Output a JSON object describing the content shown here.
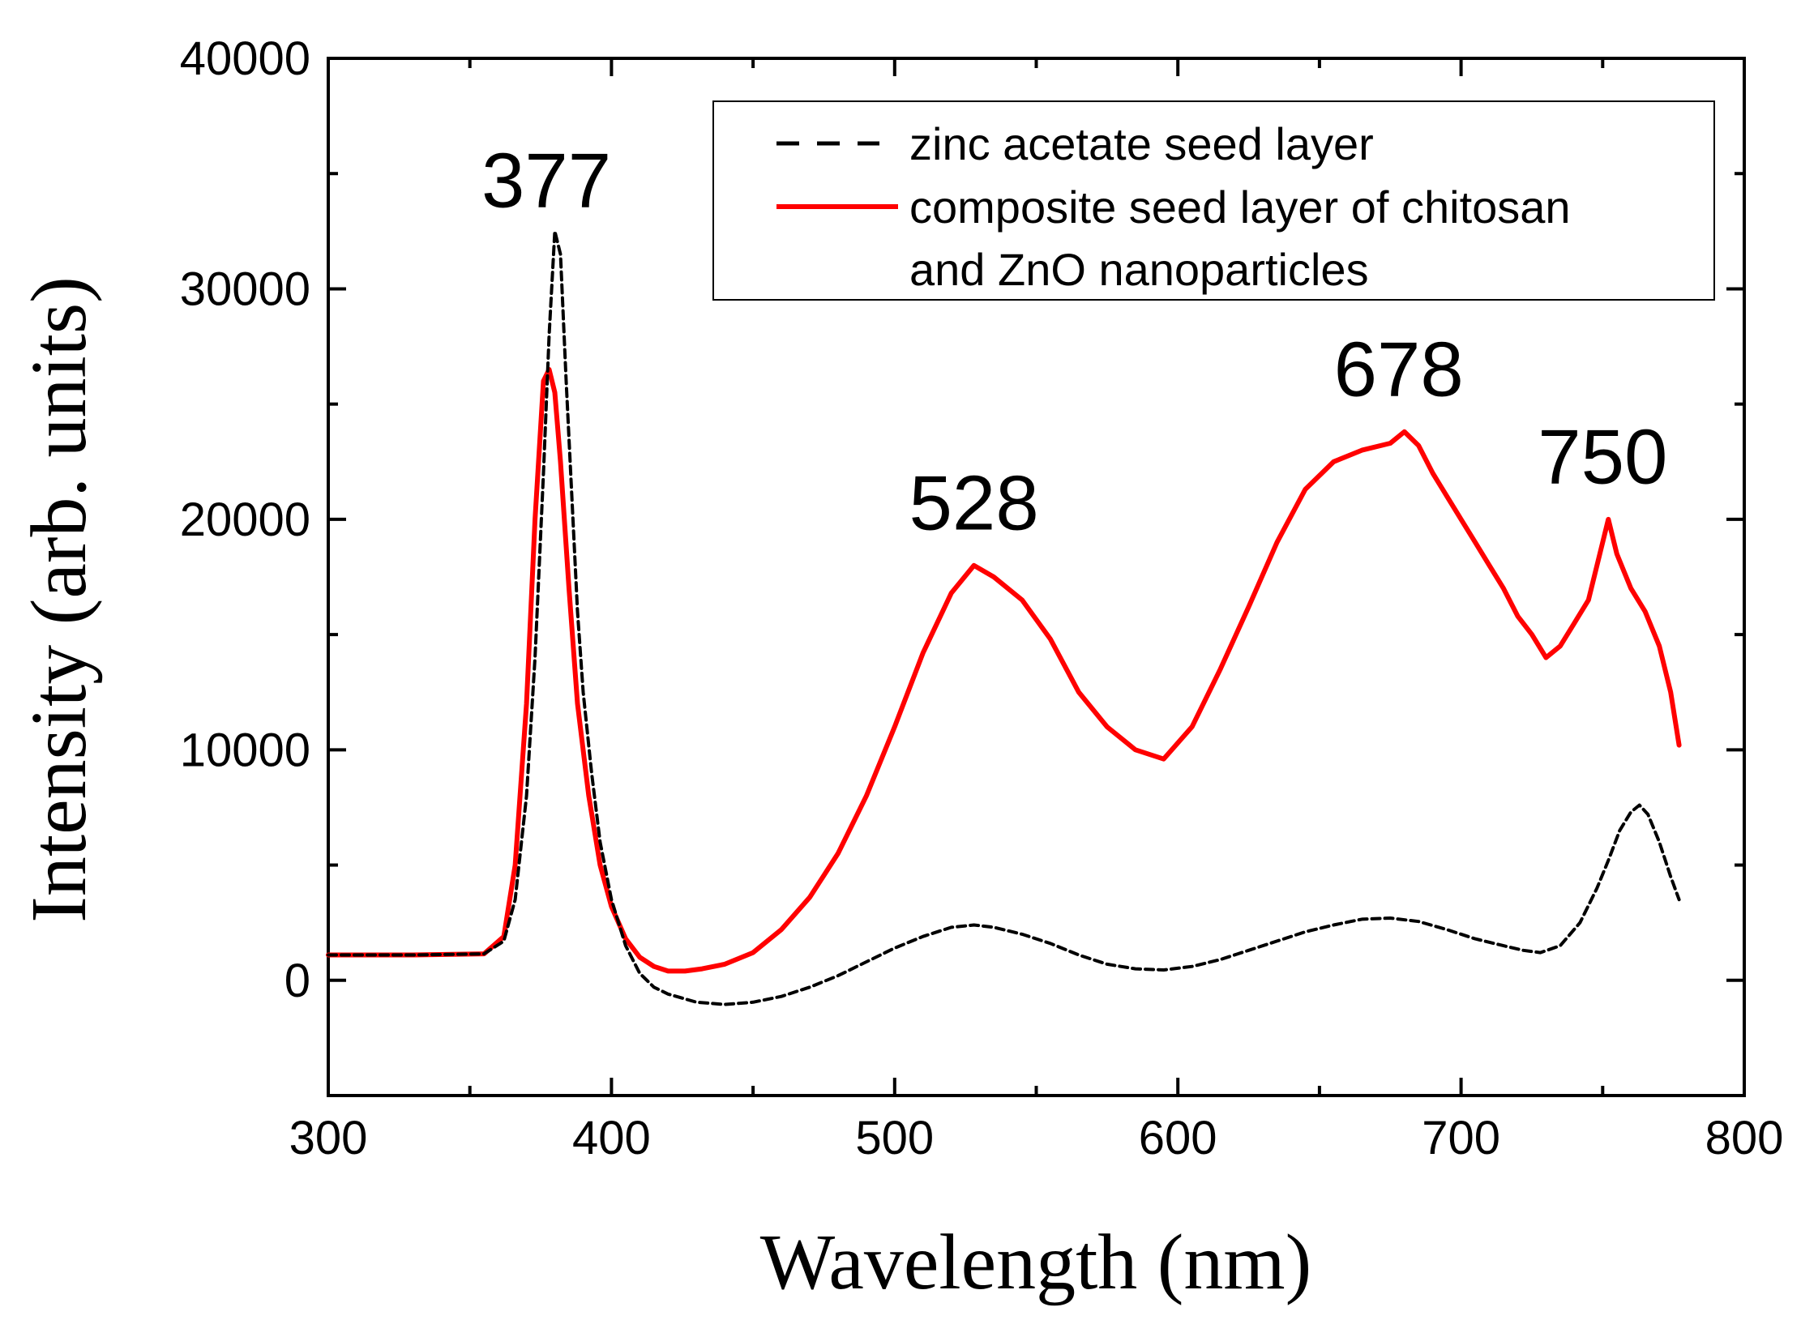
{
  "chart_data": {
    "type": "line",
    "title": "",
    "xlabel": "Wavelength (nm)",
    "ylabel": "Intensity (arb. units)",
    "xlim": [
      300,
      800
    ],
    "ylim": [
      -5000,
      40000
    ],
    "xticks": [
      300,
      400,
      500,
      600,
      700,
      800
    ],
    "xtick_labels": [
      "300",
      "400",
      "500",
      "600",
      "700",
      "800"
    ],
    "yticks": [
      0,
      10000,
      20000,
      30000,
      40000
    ],
    "ytick_labels": [
      "0",
      "10000",
      "20000",
      "30000",
      "40000"
    ],
    "grid": false,
    "legend_position": "top-right",
    "legend": [
      "zinc acetate seed layer",
      "composite seed layer of chitosan",
      "and ZnO nanoparticles"
    ],
    "annotations": [
      {
        "text": "377",
        "x": 377,
        "y": 32500
      },
      {
        "text": "528",
        "x": 528,
        "y": 18500
      },
      {
        "text": "678",
        "x": 678,
        "y": 24300
      },
      {
        "text": "750",
        "x": 750,
        "y": 20500
      }
    ],
    "series": [
      {
        "name": "zinc acetate seed layer",
        "color": "#000000",
        "style": "dashed",
        "x": [
          300,
          330,
          355,
          362,
          366,
          370,
          373,
          376,
          378,
          380,
          382,
          384,
          386,
          388,
          390,
          393,
          396,
          400,
          405,
          410,
          415,
          420,
          430,
          440,
          450,
          460,
          470,
          480,
          490,
          500,
          510,
          520,
          528,
          535,
          545,
          555,
          565,
          575,
          585,
          595,
          605,
          615,
          625,
          635,
          645,
          655,
          665,
          675,
          685,
          695,
          705,
          715,
          722,
          728,
          735,
          742,
          748,
          752,
          756,
          760,
          763,
          766,
          770,
          774,
          777
        ],
        "y": [
          1100,
          1100,
          1150,
          1700,
          3500,
          8000,
          14000,
          22000,
          28000,
          32500,
          31500,
          26000,
          21000,
          16000,
          12500,
          9000,
          6000,
          3500,
          1500,
          300,
          -300,
          -600,
          -950,
          -1050,
          -950,
          -700,
          -300,
          200,
          800,
          1400,
          1900,
          2300,
          2400,
          2300,
          2000,
          1600,
          1100,
          700,
          500,
          450,
          600,
          900,
          1300,
          1700,
          2100,
          2400,
          2650,
          2700,
          2550,
          2200,
          1800,
          1500,
          1300,
          1200,
          1500,
          2500,
          4000,
          5200,
          6500,
          7300,
          7600,
          7200,
          6000,
          4500,
          3500
        ]
      },
      {
        "name": "composite seed layer of chitosan and ZnO nanoparticles",
        "color": "#ff0000",
        "style": "solid",
        "x": [
          300,
          330,
          355,
          362,
          366,
          370,
          373,
          376,
          378,
          380,
          382,
          385,
          388,
          392,
          396,
          400,
          405,
          410,
          415,
          420,
          426,
          432,
          440,
          450,
          460,
          470,
          480,
          490,
          500,
          510,
          520,
          528,
          535,
          545,
          555,
          565,
          575,
          585,
          595,
          605,
          615,
          625,
          635,
          645,
          655,
          665,
          675,
          680,
          685,
          690,
          695,
          700,
          705,
          710,
          715,
          720,
          725,
          730,
          735,
          740,
          745,
          750,
          752,
          755,
          760,
          765,
          770,
          774,
          777
        ],
        "y": [
          1100,
          1100,
          1150,
          1900,
          5000,
          12000,
          20000,
          26000,
          26500,
          25500,
          22500,
          17000,
          12000,
          8000,
          5000,
          3200,
          1800,
          1000,
          600,
          400,
          400,
          500,
          700,
          1200,
          2200,
          3600,
          5500,
          8000,
          11000,
          14200,
          16800,
          18000,
          17500,
          16500,
          14800,
          12500,
          11000,
          10000,
          9600,
          11000,
          13500,
          16200,
          19000,
          21300,
          22500,
          23000,
          23300,
          23800,
          23200,
          22000,
          21000,
          20000,
          19000,
          18000,
          17000,
          15800,
          15000,
          14000,
          14500,
          15500,
          16500,
          19000,
          20000,
          18500,
          17000,
          16000,
          14500,
          12500,
          10200
        ]
      }
    ]
  }
}
